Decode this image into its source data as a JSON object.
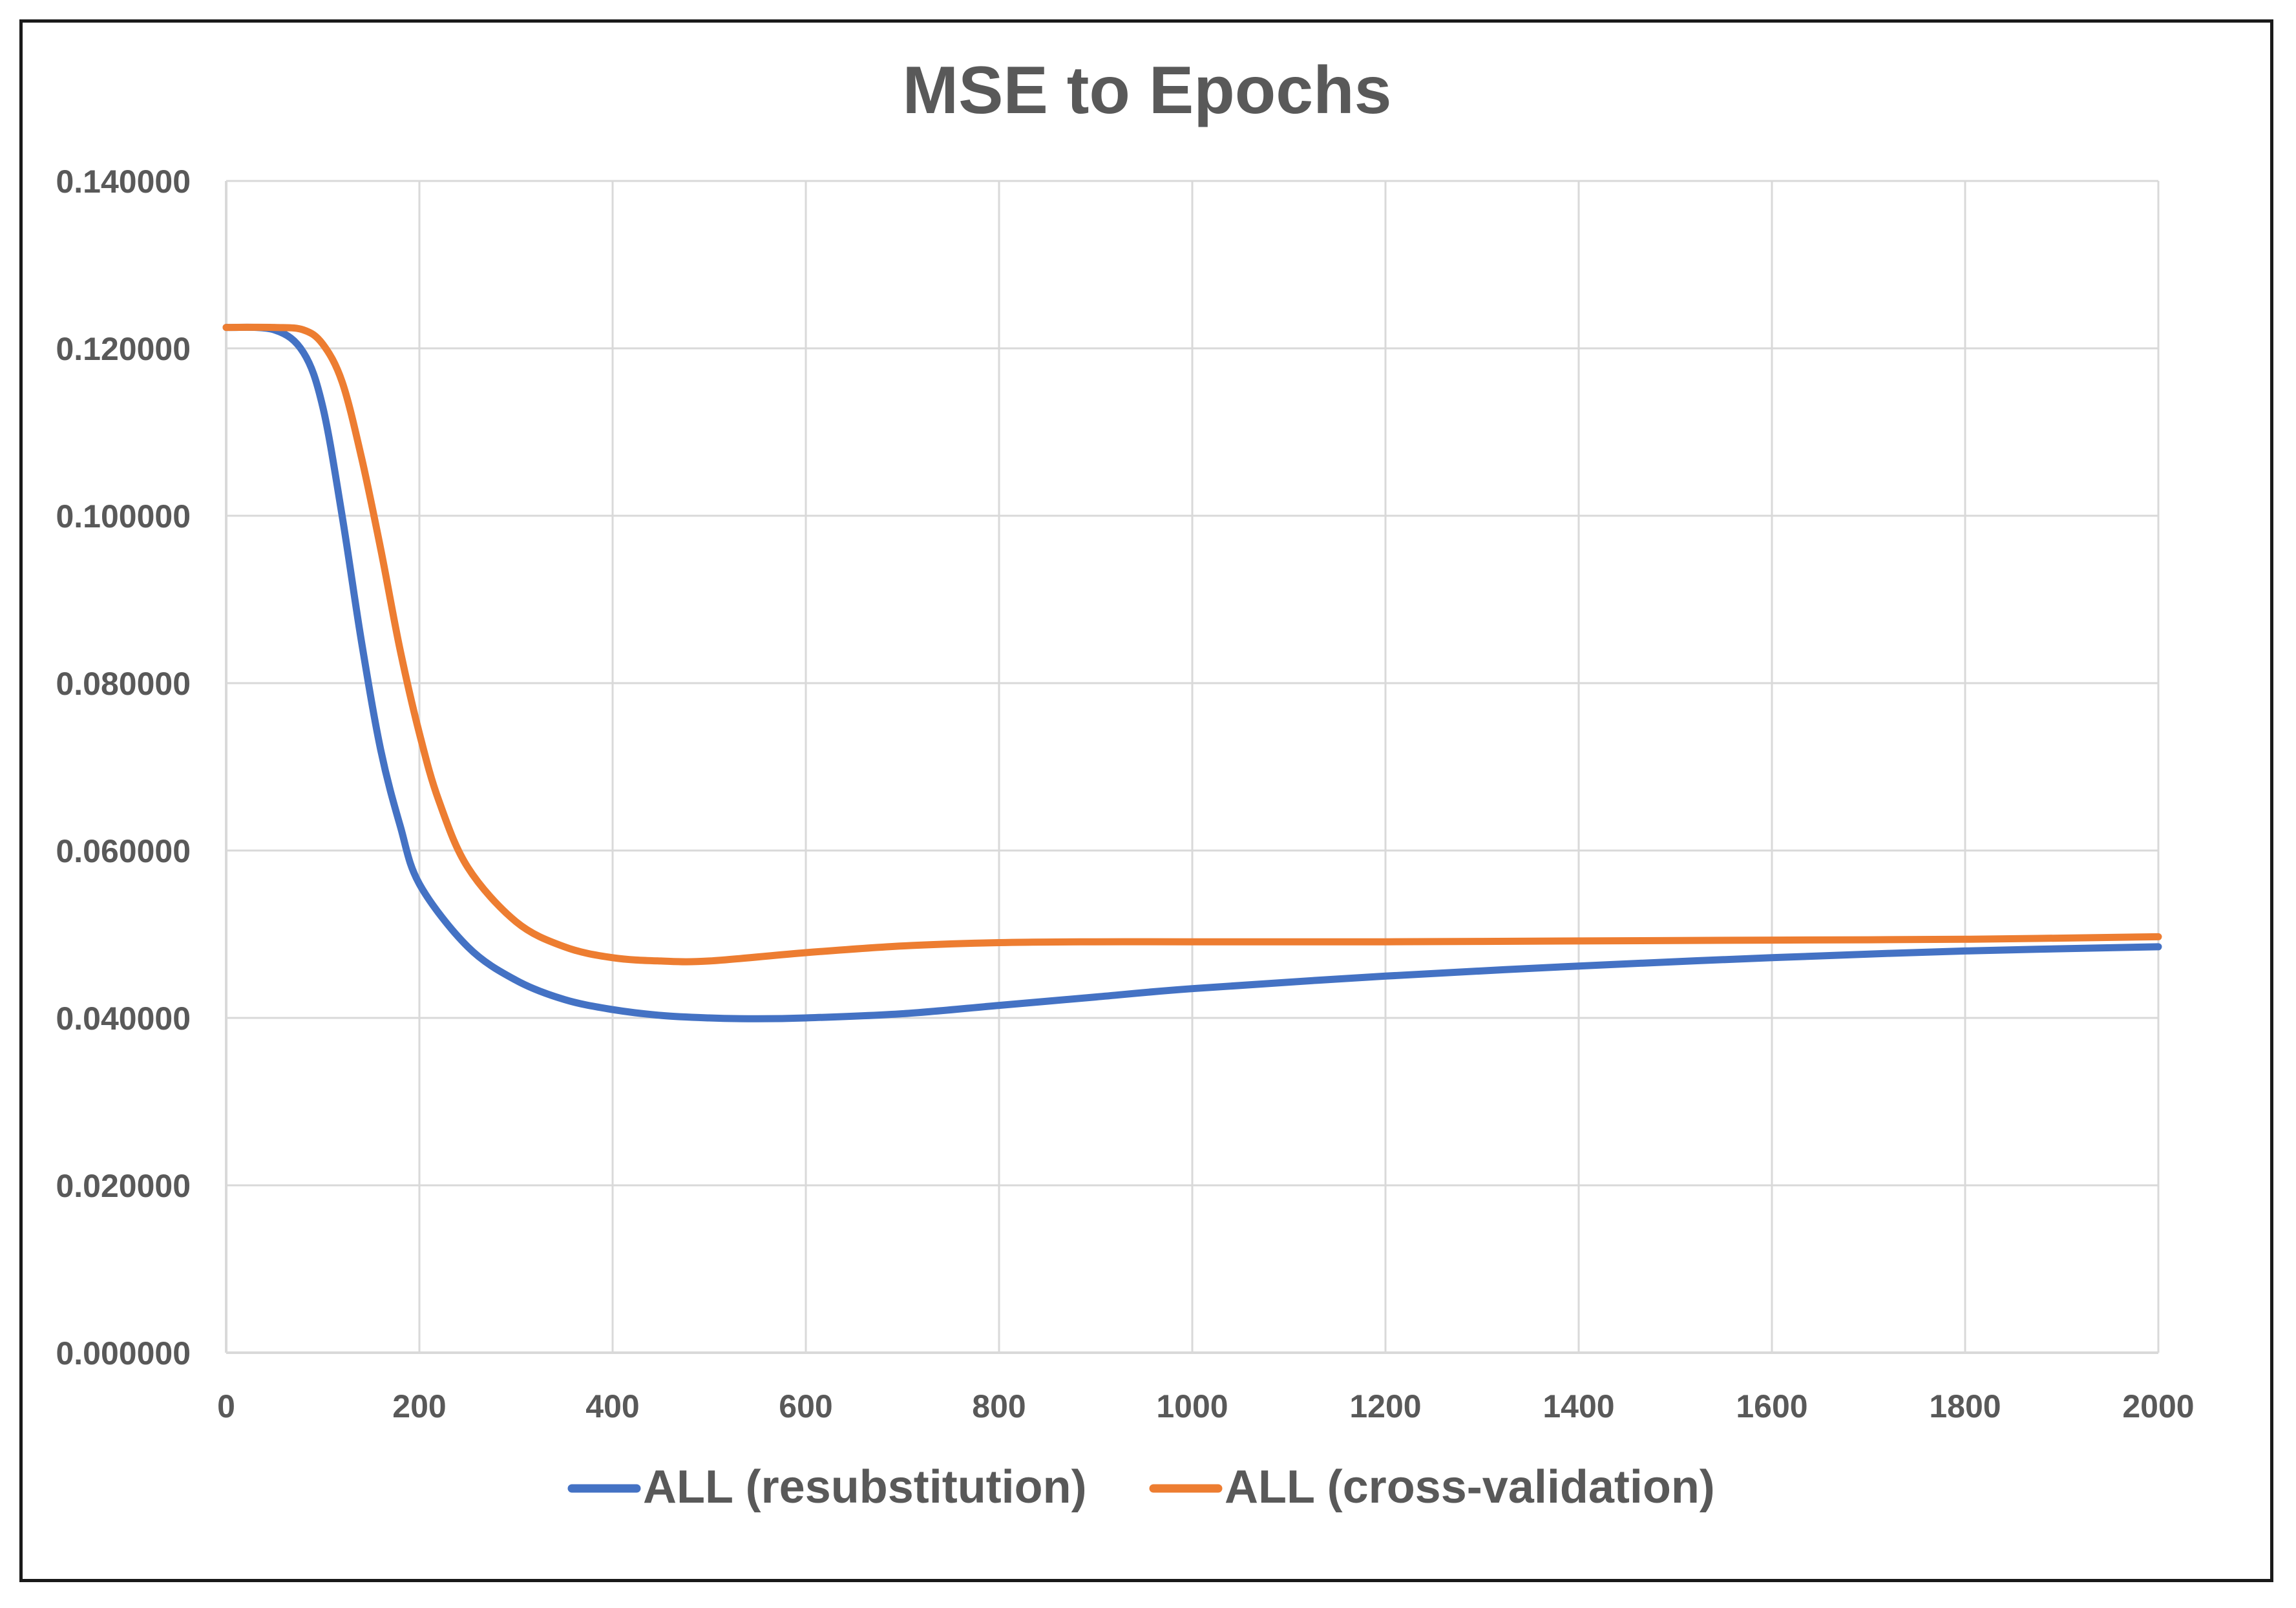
{
  "chart_data": {
    "type": "line",
    "title": "MSE to Epochs",
    "xlabel": "",
    "ylabel": "",
    "xlim": [
      0,
      2000
    ],
    "ylim": [
      0,
      0.14
    ],
    "x_ticks": [
      "0",
      "200",
      "400",
      "600",
      "800",
      "1000",
      "1200",
      "1400",
      "1600",
      "1800",
      "2000"
    ],
    "y_ticks": [
      "0.000000",
      "0.020000",
      "0.040000",
      "0.060000",
      "0.080000",
      "0.100000",
      "0.120000",
      "0.140000"
    ],
    "grid": true,
    "legend_position": "bottom",
    "series": [
      {
        "name": "ALL (resubstitution)",
        "color": "#4472C4",
        "x": [
          0,
          50,
          80,
          100,
          120,
          140,
          160,
          180,
          200,
          250,
          300,
          350,
          400,
          450,
          500,
          550,
          600,
          700,
          800,
          900,
          1000,
          1200,
          1400,
          1600,
          1800,
          2000
        ],
        "values": [
          0.1225,
          0.1222,
          0.1195,
          0.113,
          0.1,
          0.085,
          0.072,
          0.063,
          0.056,
          0.0485,
          0.0445,
          0.0422,
          0.041,
          0.0403,
          0.04,
          0.0399,
          0.04,
          0.0405,
          0.0415,
          0.0425,
          0.0435,
          0.045,
          0.0462,
          0.0472,
          0.048,
          0.0485
        ]
      },
      {
        "name": "ALL (cross-validation)",
        "color": "#ED7D31",
        "x": [
          0,
          50,
          80,
          100,
          120,
          140,
          160,
          180,
          200,
          220,
          250,
          300,
          350,
          400,
          450,
          500,
          600,
          700,
          800,
          900,
          1000,
          1200,
          1400,
          1600,
          1800,
          2000
        ],
        "values": [
          0.1225,
          0.1225,
          0.1222,
          0.1205,
          0.116,
          0.107,
          0.096,
          0.084,
          0.074,
          0.066,
          0.058,
          0.0515,
          0.0485,
          0.0472,
          0.0468,
          0.0468,
          0.0478,
          0.0486,
          0.049,
          0.0491,
          0.0491,
          0.0491,
          0.0492,
          0.0493,
          0.0494,
          0.0497
        ]
      }
    ]
  }
}
